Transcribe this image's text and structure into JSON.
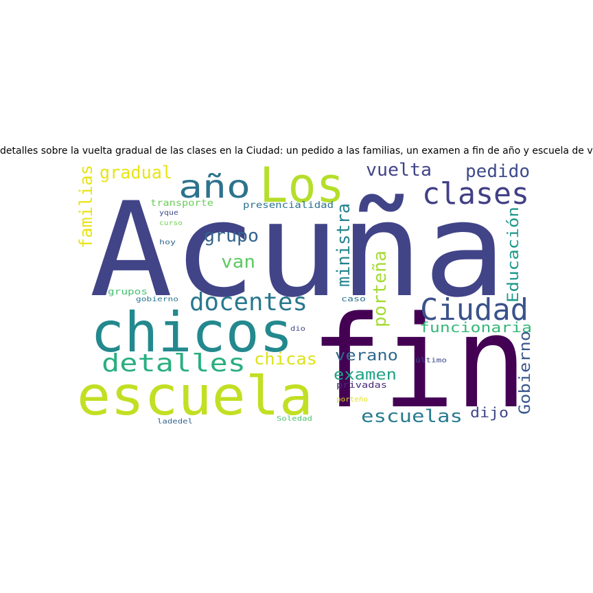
{
  "title": "detalles sobre la vuelta gradual de las clases en la Ciudad: un pedido a las familias, un examen a fin de año y escuela de verano",
  "palette": {
    "dark_purple": "#440154",
    "indigo": "#3b4a8a",
    "blue": "#3f5a8c",
    "teal": "#2a788e",
    "green_teal": "#22a884",
    "green": "#54c568",
    "lime": "#b5de2b",
    "yellow": "#e0e33a"
  },
  "words": [
    {
      "text": "Acuña",
      "color": "#414487"
    },
    {
      "text": "fin",
      "color": "#440154"
    },
    {
      "text": "chicos",
      "color": "#23898e"
    },
    {
      "text": "escuela",
      "color": "#c2df23"
    },
    {
      "text": "Los",
      "color": "#b5de2b"
    },
    {
      "text": "clases",
      "color": "#424086"
    },
    {
      "text": "año",
      "color": "#2c728e"
    },
    {
      "text": "Ciudad",
      "color": "#3b528b"
    },
    {
      "text": "detalles",
      "color": "#29af7f"
    },
    {
      "text": "docentes",
      "color": "#2a788e"
    },
    {
      "text": "vuelta",
      "color": "#414487"
    },
    {
      "text": "pedido",
      "color": "#3e4a89"
    },
    {
      "text": "gradual",
      "color": "#e8e419"
    },
    {
      "text": "familias",
      "color": "#e8e419"
    },
    {
      "text": "grupo",
      "color": "#33638d"
    },
    {
      "text": "van",
      "color": "#5ec962"
    },
    {
      "text": "ministra",
      "color": "#25848e"
    },
    {
      "text": "porteña",
      "color": "#a5db36"
    },
    {
      "text": "Educación",
      "color": "#1f988b"
    },
    {
      "text": "funcionaria",
      "color": "#35b779"
    },
    {
      "text": "chicas",
      "color": "#dde318"
    },
    {
      "text": "verano",
      "color": "#31688e"
    },
    {
      "text": "examen",
      "color": "#20a386"
    },
    {
      "text": "escuelas",
      "color": "#287c8e"
    },
    {
      "text": "dijo",
      "color": "#404688"
    },
    {
      "text": "Gobierno",
      "color": "#39568c"
    },
    {
      "text": "transporte",
      "color": "#6ccd5a"
    },
    {
      "text": "presencialidad",
      "color": "#2c728e"
    },
    {
      "text": "yque",
      "color": "#3e4c8a"
    },
    {
      "text": "curso",
      "color": "#75d054"
    },
    {
      "text": "hoy",
      "color": "#31688e"
    },
    {
      "text": "grupos",
      "color": "#44bf70"
    },
    {
      "text": "gobierno",
      "color": "#2a768e"
    },
    {
      "text": "caso",
      "color": "#2c718e"
    },
    {
      "text": "dio",
      "color": "#3f4788"
    },
    {
      "text": "último",
      "color": "#3e4989"
    },
    {
      "text": "privadas",
      "color": "#482878"
    },
    {
      "text": "porteño",
      "color": "#e5e419"
    },
    {
      "text": "ladedel",
      "color": "#33638d"
    },
    {
      "text": "Soledad",
      "color": "#4ac16d"
    }
  ]
}
